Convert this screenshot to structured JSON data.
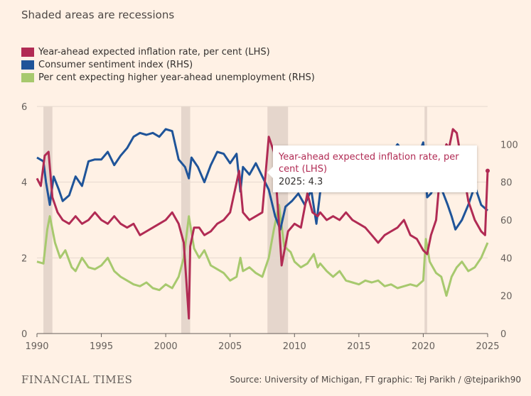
{
  "subtitle": "Shaded areas are recessions",
  "legend": [
    {
      "label": "Year-ahead expected inflation rate, per cent (LHS)",
      "color": "#b12b54"
    },
    {
      "label": "Consumer sentiment index (RHS)",
      "color": "#1f5499"
    },
    {
      "label": "Per cent expecting higher year-ahead unemployment (RHS)",
      "color": "#a7c96e"
    }
  ],
  "tooltip": {
    "title": "Year-ahead expected inflation rate, per cent (LHS)",
    "value_line": "2025: 4.3"
  },
  "footer": {
    "brand": "FINANCIAL TIMES",
    "source": "Source: University of Michigan, FT graphic: Tej Parikh / @tejparikh90"
  },
  "chart_data": {
    "type": "line",
    "x_ticks": [
      "1990",
      "1995",
      "2000",
      "2005",
      "2010",
      "2015",
      "2020",
      "2025"
    ],
    "left_axis": {
      "ticks": [
        "0",
        "2",
        "4",
        "6"
      ],
      "range": [
        0,
        6
      ]
    },
    "right_axis": {
      "ticks": [
        "0",
        "20",
        "40",
        "60",
        "80",
        "100"
      ],
      "range": [
        0,
        120
      ]
    },
    "x_range": [
      1990,
      2025
    ],
    "recessions": [
      [
        1990.5,
        1991.2
      ],
      [
        2001.2,
        2001.9
      ],
      [
        2007.9,
        2009.5
      ],
      [
        2020.1,
        2020.3
      ]
    ],
    "series": [
      {
        "name": "Year-ahead expected inflation rate, per cent (LHS)",
        "axis": "left",
        "color": "#b12b54",
        "x": [
          1990,
          1990.3,
          1990.6,
          1990.9,
          1991.2,
          1991.6,
          1992,
          1992.5,
          1993,
          1993.5,
          1994,
          1994.5,
          1995,
          1995.5,
          1996,
          1996.5,
          1997,
          1997.5,
          1998,
          1998.5,
          1999,
          1999.5,
          2000,
          2000.5,
          2001,
          2001.4,
          2001.8,
          2001.9,
          2002.2,
          2002.6,
          2003,
          2003.5,
          2004,
          2004.5,
          2005,
          2005.7,
          2006,
          2006.5,
          2007,
          2007.5,
          2008,
          2008.4,
          2008.8,
          2009,
          2009.5,
          2010,
          2010.5,
          2011,
          2011.4,
          2011.8,
          2012,
          2012.5,
          2013,
          2013.5,
          2014,
          2014.5,
          2015,
          2015.5,
          2016,
          2016.5,
          2017,
          2017.5,
          2018,
          2018.5,
          2019,
          2019.5,
          2020,
          2020.3,
          2020.6,
          2021,
          2021.4,
          2021.8,
          2022,
          2022.3,
          2022.6,
          2023,
          2023.5,
          2024,
          2024.5,
          2024.8,
          2025
        ],
        "y": [
          4.1,
          3.9,
          4.7,
          4.8,
          3.6,
          3.2,
          3.0,
          2.9,
          3.1,
          2.9,
          3.0,
          3.2,
          3.0,
          2.9,
          3.1,
          2.9,
          2.8,
          2.9,
          2.6,
          2.7,
          2.8,
          2.9,
          3.0,
          3.2,
          2.9,
          2.4,
          0.4,
          2.3,
          2.8,
          2.8,
          2.6,
          2.7,
          2.9,
          3.0,
          3.2,
          4.3,
          3.2,
          3.0,
          3.1,
          3.2,
          5.2,
          4.8,
          2.9,
          1.8,
          2.7,
          2.9,
          2.8,
          3.7,
          3.2,
          3.1,
          3.2,
          3.0,
          3.1,
          3.0,
          3.2,
          3.0,
          2.9,
          2.8,
          2.6,
          2.4,
          2.6,
          2.7,
          2.8,
          3.0,
          2.6,
          2.5,
          2.2,
          2.1,
          2.6,
          3.0,
          4.6,
          5.0,
          4.9,
          5.4,
          5.3,
          4.5,
          3.5,
          3.0,
          2.7,
          2.6,
          4.3
        ]
      },
      {
        "name": "Consumer sentiment index (RHS)",
        "axis": "right",
        "color": "#1f5499",
        "x": [
          1990,
          1990.5,
          1990.7,
          1991,
          1991.3,
          1991.7,
          1992,
          1992.5,
          1993,
          1993.5,
          1994,
          1994.5,
          1995,
          1995.5,
          1996,
          1996.5,
          1997,
          1997.5,
          1998,
          1998.5,
          1999,
          1999.5,
          2000,
          2000.5,
          2001,
          2001.5,
          2001.8,
          2002,
          2002.5,
          2003,
          2003.5,
          2004,
          2004.5,
          2005,
          2005.5,
          2005.8,
          2006,
          2006.5,
          2007,
          2007.5,
          2008,
          2008.5,
          2008.9,
          2009.3,
          2009.8,
          2010.3,
          2010.8,
          2011.3,
          2011.7,
          2012,
          2012.5,
          2013,
          2013.5,
          2014,
          2014.5,
          2015,
          2015.5,
          2016,
          2016.5,
          2017,
          2017.5,
          2018,
          2018.5,
          2019,
          2019.5,
          2020,
          2020.3,
          2020.6,
          2021,
          2021.5,
          2021.9,
          2022.2,
          2022.5,
          2023,
          2023.5,
          2024,
          2024.5,
          2025
        ],
        "y": [
          93,
          91,
          80,
          68,
          83,
          76,
          70,
          73,
          83,
          78,
          91,
          92,
          92,
          96,
          89,
          94,
          98,
          104,
          106,
          105,
          106,
          104,
          108,
          107,
          92,
          88,
          82,
          93,
          88,
          80,
          89,
          96,
          95,
          90,
          95,
          75,
          88,
          84,
          90,
          83,
          76,
          62,
          55,
          67,
          70,
          74,
          68,
          76,
          58,
          75,
          76,
          78,
          84,
          81,
          82,
          95,
          91,
          91,
          93,
          97,
          95,
          100,
          96,
          98,
          92,
          101,
          72,
          74,
          80,
          75,
          68,
          62,
          55,
          60,
          68,
          78,
          68,
          65
        ]
      },
      {
        "name": "Per cent expecting higher year-ahead unemployment (RHS)",
        "axis": "right",
        "color": "#a7c96e",
        "x": [
          1990,
          1990.5,
          1990.8,
          1991,
          1991.4,
          1991.8,
          1992.2,
          1992.7,
          1993,
          1993.5,
          1994,
          1994.5,
          1995,
          1995.5,
          1996,
          1996.5,
          1997,
          1997.5,
          1998,
          1998.5,
          1999,
          1999.5,
          2000,
          2000.5,
          2001,
          2001.4,
          2001.8,
          2002.2,
          2002.6,
          2003,
          2003.5,
          2004,
          2004.5,
          2005,
          2005.5,
          2005.8,
          2006,
          2006.5,
          2007,
          2007.5,
          2008,
          2008.4,
          2008.8,
          2009.2,
          2009.7,
          2010,
          2010.5,
          2011,
          2011.5,
          2011.8,
          2012,
          2012.5,
          2013,
          2013.5,
          2014,
          2014.5,
          2015,
          2015.5,
          2016,
          2016.5,
          2017,
          2017.5,
          2018,
          2018.5,
          2019,
          2019.5,
          2020,
          2020.2,
          2020.5,
          2021,
          2021.4,
          2021.8,
          2022.2,
          2022.6,
          2023,
          2023.5,
          2024,
          2024.5,
          2025
        ],
        "y": [
          38,
          37,
          55,
          62,
          48,
          40,
          44,
          35,
          33,
          40,
          35,
          34,
          36,
          40,
          33,
          30,
          28,
          26,
          25,
          27,
          24,
          23,
          26,
          24,
          30,
          40,
          62,
          45,
          40,
          44,
          36,
          34,
          32,
          28,
          30,
          40,
          33,
          35,
          32,
          30,
          40,
          55,
          68,
          46,
          43,
          38,
          35,
          37,
          42,
          35,
          37,
          33,
          30,
          33,
          28,
          27,
          26,
          28,
          27,
          28,
          25,
          26,
          24,
          25,
          26,
          25,
          28,
          50,
          38,
          32,
          30,
          20,
          30,
          35,
          38,
          33,
          35,
          40,
          48
        ]
      }
    ]
  }
}
